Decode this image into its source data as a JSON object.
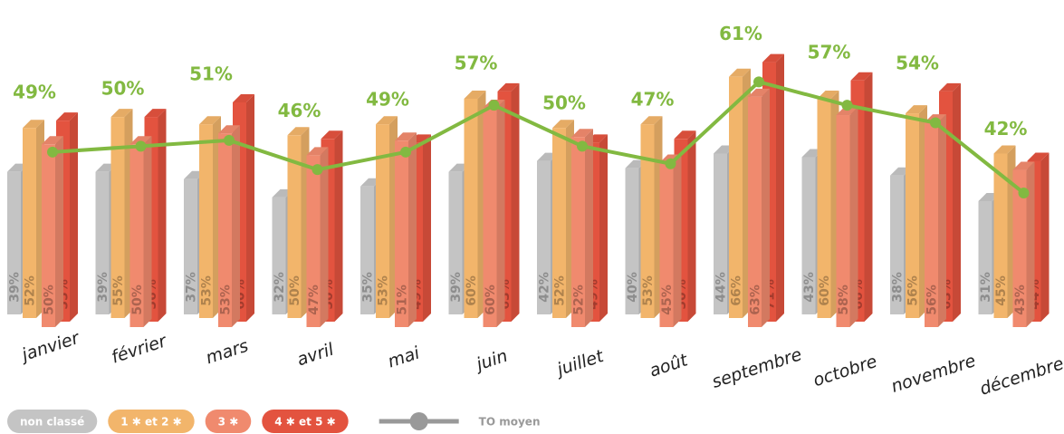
{
  "chart_data": {
    "type": "bar",
    "categories": [
      "janvier",
      "février",
      "mars",
      "avril",
      "mai",
      "juin",
      "juillet",
      "août",
      "septembre",
      "octobre",
      "novembre",
      "décembre"
    ],
    "ylim": [
      0,
      88
    ],
    "y2lim": [
      20,
      75
    ],
    "series": [
      {
        "name": "non classé",
        "color": "#c4c4c4",
        "values": [
          39,
          39,
          37,
          32,
          35,
          39,
          42,
          40,
          44,
          43,
          38,
          31
        ],
        "value_labels": [
          "39%",
          "39%",
          "37%",
          "32%",
          "35%",
          "39%",
          "42%",
          "40%",
          "44%",
          "43%",
          "38%",
          "31%"
        ]
      },
      {
        "name": "1 ✱ et 2 ✱",
        "color": "#f2b56b",
        "values": [
          52,
          55,
          53,
          50,
          53,
          60,
          52,
          53,
          66,
          60,
          56,
          45
        ],
        "value_labels": [
          "52%",
          "55%",
          "53%",
          "50%",
          "53%",
          "60%",
          "52%",
          "53%",
          "66%",
          "60%",
          "56%",
          "45%"
        ]
      },
      {
        "name": "3 ✱",
        "color": "#f08a6e",
        "values": [
          50,
          50,
          53,
          47,
          51,
          60,
          52,
          45,
          63,
          58,
          56,
          43
        ],
        "value_labels": [
          "50%",
          "50%",
          "53%",
          "47%",
          "51%",
          "60%",
          "52%",
          "45%",
          "63%",
          "58%",
          "56%",
          "43%"
        ]
      },
      {
        "name": "4 ✱ et 5 ✱",
        "color": "#e3533f",
        "values": [
          55,
          56,
          60,
          50,
          49,
          63,
          49,
          50,
          71,
          66,
          63,
          44
        ],
        "value_labels": [
          "55%",
          "56%",
          "60%",
          "50%",
          "49%",
          "63%",
          "49%",
          "50%",
          "71%",
          "66%",
          "63%",
          "44%"
        ]
      },
      {
        "name": "TO moyen",
        "color": "#82b941",
        "type": "line",
        "axis": "y2",
        "values": [
          49,
          50,
          51,
          46,
          49,
          57,
          50,
          47,
          61,
          57,
          54,
          42
        ],
        "value_labels": [
          "49%",
          "50%",
          "51%",
          "46%",
          "49%",
          "57%",
          "50%",
          "47%",
          "61%",
          "57%",
          "54%",
          "42%"
        ]
      }
    ]
  }
}
